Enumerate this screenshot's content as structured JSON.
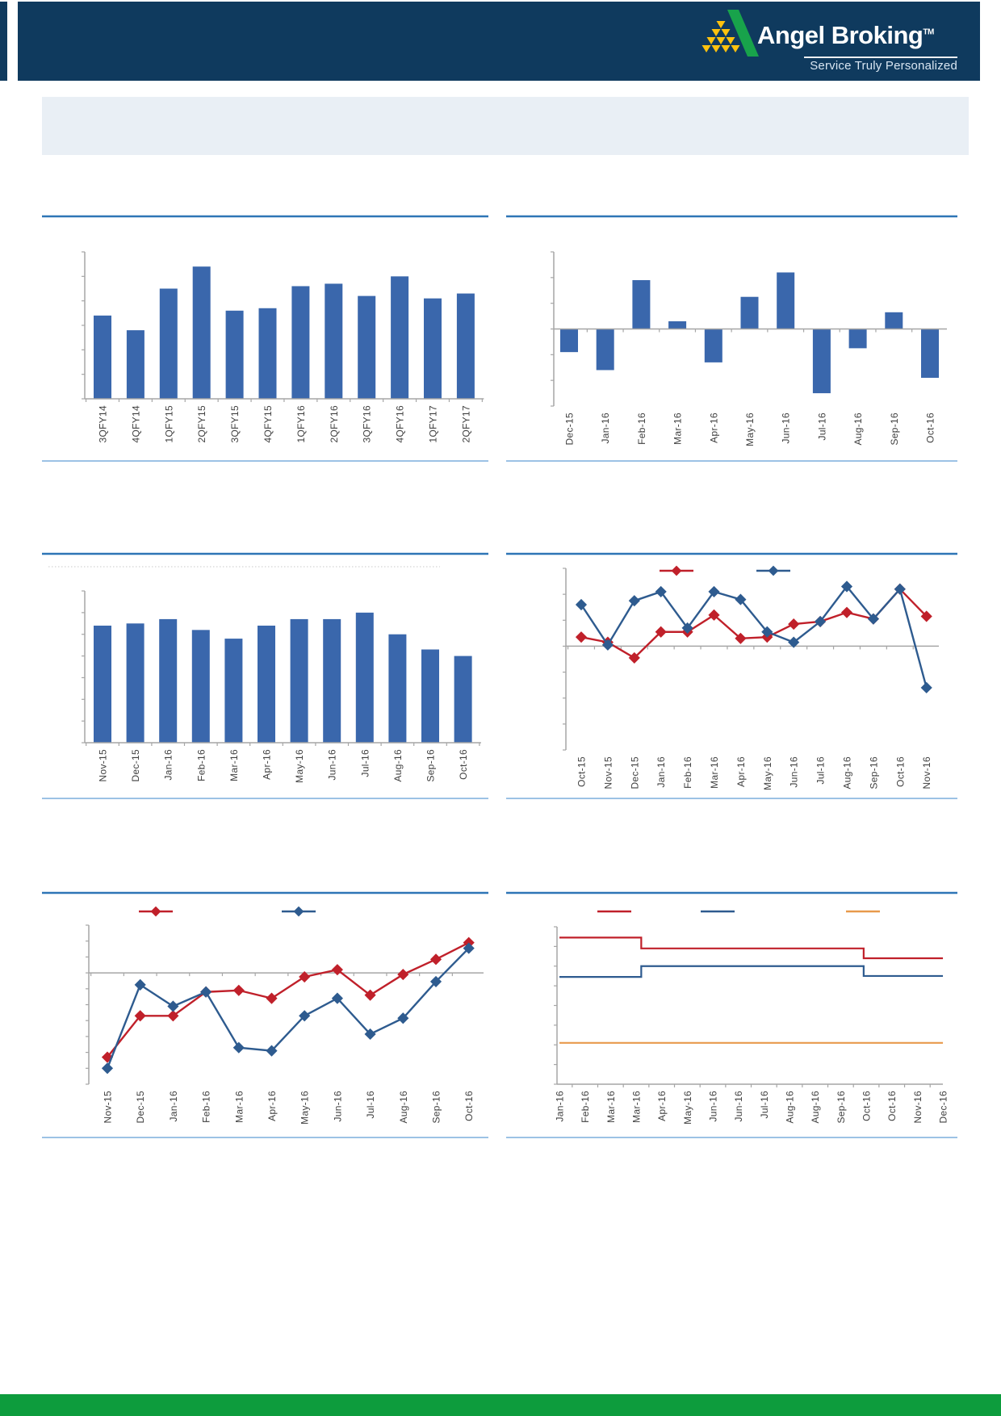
{
  "header": {
    "brand_name": "Angel Broking",
    "trademark": "TM",
    "tagline": "Service Truly Personalized",
    "colors": {
      "bar": "#0f3a5e",
      "logo_green": "#18a34b",
      "logo_yellow": "#ffc20e",
      "text": "#ffffff"
    }
  },
  "banner": {
    "text": "",
    "color": "#e9eff5"
  },
  "footer": {
    "color": "#0d9c3d"
  },
  "styles": {
    "title_line": "#2e75b6",
    "bottom_line": "#9cc2e5",
    "axis": "#a6a6a6",
    "label_text": "#3f3f3f",
    "bar_blue": "#3a67ac",
    "line_red": "#c0202a",
    "line_blue": "#2e5b8f",
    "line_orange": "#e89a4c",
    "dotted_line": "#c9c9c9"
  },
  "chart_data": [
    {
      "id": "c1",
      "name": "top-left-quarterly-bar",
      "type": "bar",
      "title": "",
      "categories": [
        "3QFY14",
        "4QFY14",
        "1QFY15",
        "2QFY15",
        "3QFY15",
        "4QFY15",
        "1QFY16",
        "2QFY16",
        "3QFY16",
        "4QFY16",
        "1QFY17",
        "2QFY17"
      ],
      "values": [
        3.4,
        2.8,
        4.5,
        5.4,
        3.6,
        3.7,
        4.6,
        4.7,
        4.2,
        5.0,
        4.1,
        4.3
      ],
      "ylim": [
        0,
        6
      ],
      "yticks_shown": false,
      "bar_color": "#3a67ac",
      "note": "y-axis has tick marks but no numeric labels in source image; values estimated in tick units"
    },
    {
      "id": "c2",
      "name": "top-right-monthly-bar-pos-neg",
      "type": "bar",
      "title": "",
      "categories": [
        "Dec-15",
        "Jan-16",
        "Feb-16",
        "Mar-16",
        "Apr-16",
        "May-16",
        "Jun-16",
        "Jul-16",
        "Aug-16",
        "Sep-16",
        "Oct-16"
      ],
      "values": [
        -0.9,
        -1.6,
        1.9,
        0.3,
        -1.3,
        1.25,
        2.2,
        -2.5,
        -0.75,
        0.65,
        -1.9
      ],
      "ylim": [
        -3,
        3
      ],
      "yticks_shown": false,
      "bar_color": "#3a67ac"
    },
    {
      "id": "c3",
      "name": "middle-left-monthly-bar",
      "type": "bar",
      "title": "",
      "categories": [
        "Nov-15",
        "Dec-15",
        "Jan-16",
        "Feb-16",
        "Mar-16",
        "Apr-16",
        "May-16",
        "Jun-16",
        "Jul-16",
        "Aug-16",
        "Sep-16",
        "Oct-16"
      ],
      "values": [
        5.4,
        5.5,
        5.7,
        5.2,
        4.8,
        5.4,
        5.7,
        5.7,
        6.0,
        5.0,
        4.3,
        4.0
      ],
      "ylim": [
        0,
        7
      ],
      "yticks_shown": false,
      "bar_color": "#3a67ac"
    },
    {
      "id": "c4",
      "name": "middle-right-two-line-diamond",
      "type": "line",
      "title": "",
      "categories": [
        "Oct-15",
        "Nov-15",
        "Dec-15",
        "Jan-16",
        "Feb-16",
        "Mar-16",
        "Apr-16",
        "May-16",
        "Jun-16",
        "Jul-16",
        "Aug-16",
        "Sep-16",
        "Oct-16",
        "Nov-16"
      ],
      "ylim": [
        -4,
        3
      ],
      "legend": {
        "position": "top",
        "labels": [
          "",
          ""
        ]
      },
      "series": [
        {
          "name": "red-series",
          "color": "#c0202a",
          "marker": "diamond",
          "values": [
            0.35,
            0.15,
            -0.45,
            0.55,
            0.55,
            1.2,
            0.3,
            0.35,
            0.85,
            0.95,
            1.3,
            1.05,
            2.2,
            1.15
          ]
        },
        {
          "name": "blue-series",
          "color": "#2e5b8f",
          "marker": "diamond",
          "values": [
            1.6,
            0.05,
            1.75,
            2.1,
            0.7,
            2.1,
            1.8,
            0.55,
            0.15,
            0.95,
            2.3,
            1.05,
            2.2,
            -1.6
          ]
        }
      ]
    },
    {
      "id": "c5",
      "name": "bottom-left-two-line-diamond",
      "type": "line",
      "title": "",
      "categories": [
        "Nov-15",
        "Dec-15",
        "Jan-16",
        "Feb-16",
        "Mar-16",
        "Apr-16",
        "May-16",
        "Jun-16",
        "Jul-16",
        "Aug-16",
        "Sep-16",
        "Oct-16"
      ],
      "ylim": [
        -7,
        3
      ],
      "legend": {
        "position": "top",
        "labels": [
          "",
          ""
        ]
      },
      "series": [
        {
          "name": "red-series",
          "color": "#c0202a",
          "marker": "diamond",
          "values": [
            -5.3,
            -2.7,
            -2.7,
            -1.2,
            -1.1,
            -1.6,
            -0.25,
            0.2,
            -1.4,
            -0.1,
            0.85,
            1.9
          ]
        },
        {
          "name": "blue-series",
          "color": "#2e5b8f",
          "marker": "diamond",
          "values": [
            -6.0,
            -0.75,
            -2.1,
            -1.2,
            -4.7,
            -4.9,
            -2.7,
            -1.6,
            -3.85,
            -2.85,
            -0.55,
            1.55
          ]
        }
      ]
    },
    {
      "id": "c6",
      "name": "bottom-right-step-lines",
      "type": "step-line",
      "title": "",
      "categories": [
        "Jan-16",
        "Feb-16",
        "Mar-16",
        "Mar-16",
        "Apr-16",
        "May-16",
        "Jun-16",
        "Jun-16",
        "Jul-16",
        "Aug-16",
        "Aug-16",
        "Sep-16",
        "Oct-16",
        "Oct-16",
        "Nov-16",
        "Dec-16"
      ],
      "ylim": [
        0,
        8
      ],
      "legend": {
        "position": "top",
        "labels": [
          "",
          "",
          ""
        ]
      },
      "series": [
        {
          "name": "red-step",
          "color": "#c0202a",
          "steps": [
            {
              "from": 0,
              "to": 3.2,
              "value": 7.45
            },
            {
              "from": 3.2,
              "to": 11.9,
              "value": 6.9
            },
            {
              "from": 11.9,
              "to": 15,
              "value": 6.4
            }
          ]
        },
        {
          "name": "blue-step",
          "color": "#2e5b8f",
          "steps": [
            {
              "from": 0,
              "to": 3.2,
              "value": 5.45
            },
            {
              "from": 3.2,
              "to": 11.9,
              "value": 6.0
            },
            {
              "from": 11.9,
              "to": 15,
              "value": 5.5
            }
          ]
        },
        {
          "name": "orange-step",
          "color": "#e89a4c",
          "steps": [
            {
              "from": 0,
              "to": 15,
              "value": 2.1
            }
          ]
        }
      ]
    }
  ]
}
